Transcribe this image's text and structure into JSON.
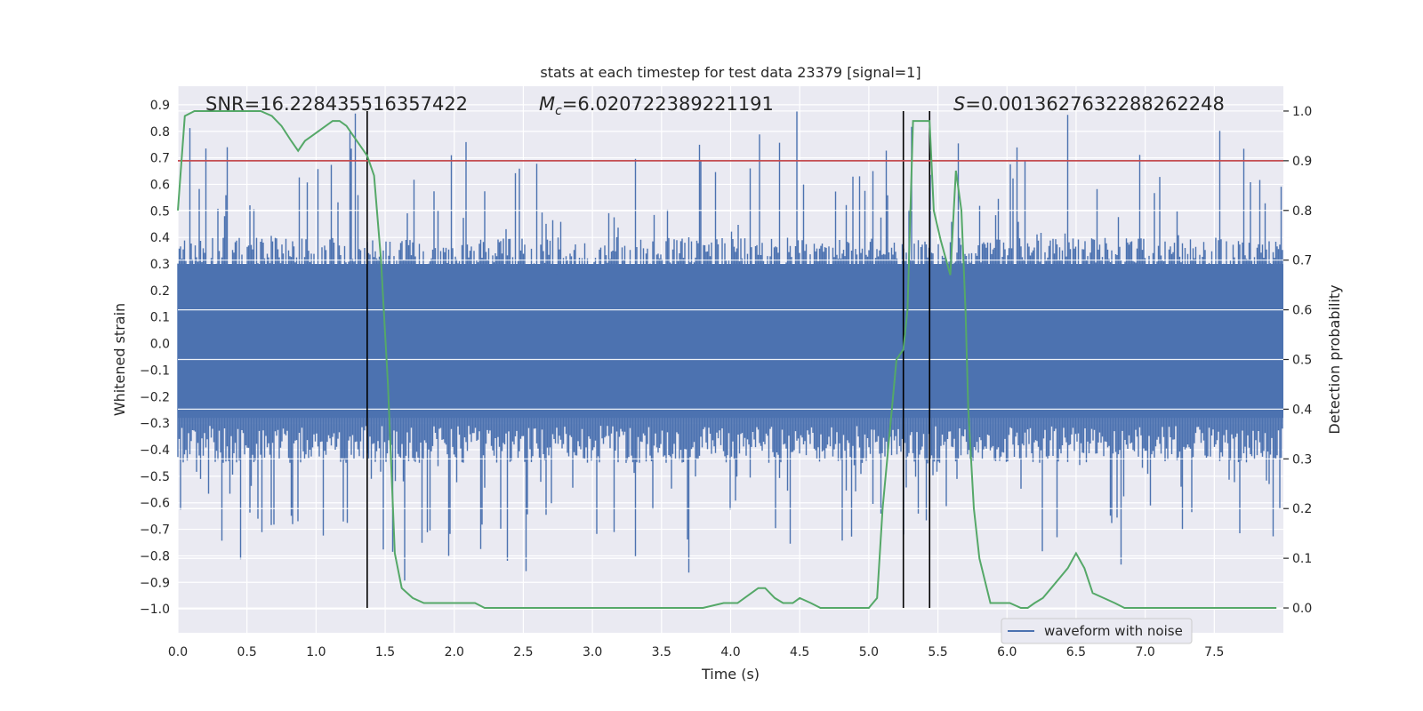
{
  "chart_data": {
    "type": "line",
    "title": "stats at each timestep for test data 23379 [signal=1]",
    "xlabel": "Time (s)",
    "ylabel": "Whitened strain",
    "ylabel_right": "Detection probability",
    "xlim": [
      0.0,
      8.0
    ],
    "ylim": [
      -1.09,
      0.97
    ],
    "ylim_right": [
      -0.05,
      1.05
    ],
    "x_ticks": [
      0.0,
      0.5,
      1.0,
      1.5,
      2.0,
      2.5,
      3.0,
      3.5,
      4.0,
      4.5,
      5.0,
      5.5,
      6.0,
      6.5,
      7.0,
      7.5
    ],
    "x_tick_labels": [
      "0.0",
      "0.5",
      "1.0",
      "1.5",
      "2.0",
      "2.5",
      "3.0",
      "3.5",
      "4.0",
      "4.5",
      "5.0",
      "5.5",
      "6.0",
      "6.5",
      "7.0",
      "7.5"
    ],
    "y_ticks": [
      0.9,
      0.8,
      0.7,
      0.6,
      0.5,
      0.4,
      0.3,
      0.2,
      0.1,
      0.0,
      -0.1,
      -0.2,
      -0.3,
      -0.4,
      -0.5,
      -0.6,
      -0.7,
      -0.8,
      -0.9,
      -1.0
    ],
    "y_tick_labels": [
      "0.9",
      "0.8",
      "0.7",
      "0.6",
      "0.5",
      "0.4",
      "0.3",
      "0.2",
      "0.1",
      "0.0",
      "−0.1",
      "−0.2",
      "−0.3",
      "−0.4",
      "−0.5",
      "−0.6",
      "−0.7",
      "−0.8",
      "−0.9",
      "−1.0"
    ],
    "y_ticks_right": [
      1.0,
      0.9,
      0.8,
      0.7,
      0.6,
      0.5,
      0.4,
      0.3,
      0.2,
      0.1,
      0.0
    ],
    "y_tick_labels_right": [
      "1.0",
      "0.9",
      "0.8",
      "0.7",
      "0.6",
      "0.5",
      "0.4",
      "0.3",
      "0.2",
      "0.1",
      "0.0"
    ],
    "grid": true,
    "legend_placement": "lower-right",
    "annotations": {
      "snr": "SNR=16.228435516357422",
      "mc_symbol": "M",
      "mc_sub": "c",
      "mc_value": "=6.020722389221191",
      "s_symbol": "S",
      "s_value": "=0.0013627632288262248"
    },
    "threshold_right": 0.9,
    "vlines_x": [
      1.37,
      5.25,
      5.44
    ],
    "series": [
      {
        "name": "waveform with noise",
        "axis": "left",
        "style": "dense-noise",
        "color": "#4c72b0",
        "typical_envelope": [
          -0.43,
          0.38
        ],
        "extreme_range": [
          -1.0,
          0.88
        ]
      },
      {
        "axis": "right",
        "color": "#55a868",
        "x": [
          0.0,
          0.05,
          0.12,
          0.2,
          0.3,
          0.4,
          0.5,
          0.6,
          0.68,
          0.75,
          0.82,
          0.87,
          0.92,
          0.97,
          1.02,
          1.07,
          1.12,
          1.17,
          1.22,
          1.27,
          1.32,
          1.37,
          1.42,
          1.47,
          1.52,
          1.57,
          1.62,
          1.7,
          1.78,
          1.85,
          2.0,
          2.07,
          2.15,
          2.22,
          2.3,
          2.4,
          2.5,
          2.6,
          2.7,
          2.8,
          3.0,
          3.2,
          3.5,
          3.8,
          3.95,
          4.05,
          4.15,
          4.2,
          4.25,
          4.32,
          4.38,
          4.45,
          4.5,
          4.58,
          4.65,
          4.8,
          5.0,
          5.06,
          5.1,
          5.15,
          5.2,
          5.25,
          5.28,
          5.32,
          5.38,
          5.44,
          5.47,
          5.52,
          5.56,
          5.59,
          5.63,
          5.67,
          5.7,
          5.72,
          5.76,
          5.8,
          5.88,
          5.95,
          6.02,
          6.1,
          6.15,
          6.2,
          6.26,
          6.32,
          6.38,
          6.44,
          6.5,
          6.56,
          6.62,
          6.7,
          6.78,
          6.85,
          7.0,
          7.2,
          7.5,
          7.8,
          7.95
        ],
        "y": [
          0.8,
          0.99,
          1.0,
          1.0,
          1.0,
          1.0,
          1.0,
          1.0,
          0.99,
          0.97,
          0.94,
          0.92,
          0.94,
          0.95,
          0.96,
          0.97,
          0.98,
          0.98,
          0.97,
          0.95,
          0.93,
          0.91,
          0.87,
          0.7,
          0.45,
          0.11,
          0.04,
          0.02,
          0.01,
          0.01,
          0.01,
          0.01,
          0.01,
          0.0,
          0.0,
          0.0,
          0.0,
          0.0,
          0.0,
          0.0,
          0.0,
          0.0,
          0.0,
          0.0,
          0.01,
          0.01,
          0.03,
          0.04,
          0.04,
          0.02,
          0.01,
          0.01,
          0.02,
          0.01,
          0.0,
          0.0,
          0.0,
          0.02,
          0.2,
          0.35,
          0.5,
          0.52,
          0.6,
          0.98,
          0.98,
          0.98,
          0.8,
          0.74,
          0.7,
          0.67,
          0.88,
          0.8,
          0.6,
          0.4,
          0.2,
          0.1,
          0.01,
          0.01,
          0.01,
          0.0,
          0.0,
          0.01,
          0.02,
          0.04,
          0.06,
          0.08,
          0.11,
          0.08,
          0.03,
          0.02,
          0.01,
          0.0,
          0.0,
          0.0,
          0.0,
          0.0,
          0.0
        ]
      }
    ]
  }
}
